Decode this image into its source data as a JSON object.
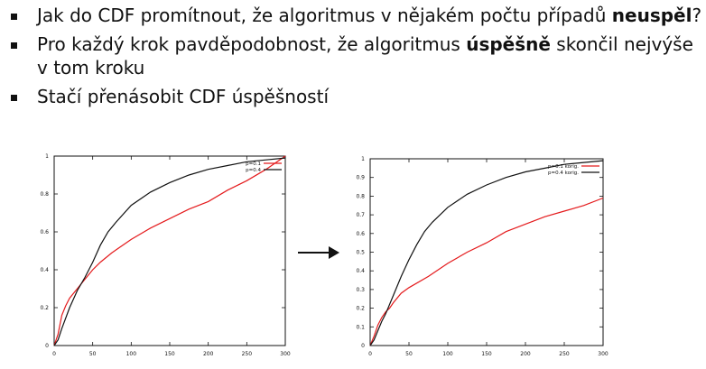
{
  "slide": {
    "bullets": [
      {
        "parts": [
          "Jak do CDF promítnout, že algoritmus v nějakém počtu případů ",
          "neuspěl",
          "?"
        ]
      },
      {
        "parts": [
          "Pro každý krok pavděpodobnost, že algoritmus ",
          "úspěšně",
          " skončil nejvýše v tom kroku"
        ]
      },
      {
        "parts": [
          "Stačí přenásobit CDF úspěšností"
        ]
      }
    ]
  },
  "chart_data": [
    {
      "type": "line",
      "xlim": [
        0,
        300
      ],
      "ylim": [
        0,
        1
      ],
      "x_ticks": [
        "0",
        "50",
        "100",
        "150",
        "200",
        "250",
        "300"
      ],
      "y_ticks": [
        "0",
        "0.2",
        "0.4",
        "0.6",
        "0.8",
        "1"
      ],
      "legend_position": "top-right",
      "series": [
        {
          "name": "p=0.1",
          "color": "#e41a1c",
          "points": [
            [
              0,
              0
            ],
            [
              5,
              0.06
            ],
            [
              10,
              0.16
            ],
            [
              15,
              0.21
            ],
            [
              20,
              0.25
            ],
            [
              30,
              0.3
            ],
            [
              40,
              0.35
            ],
            [
              50,
              0.4
            ],
            [
              60,
              0.44
            ],
            [
              75,
              0.49
            ],
            [
              100,
              0.56
            ],
            [
              125,
              0.62
            ],
            [
              150,
              0.67
            ],
            [
              175,
              0.72
            ],
            [
              200,
              0.76
            ],
            [
              225,
              0.82
            ],
            [
              250,
              0.87
            ],
            [
              275,
              0.93
            ],
            [
              300,
              1.0
            ]
          ]
        },
        {
          "name": "p=0.4",
          "color": "#111111",
          "points": [
            [
              0,
              0
            ],
            [
              5,
              0.03
            ],
            [
              10,
              0.09
            ],
            [
              20,
              0.2
            ],
            [
              30,
              0.29
            ],
            [
              40,
              0.36
            ],
            [
              50,
              0.44
            ],
            [
              60,
              0.53
            ],
            [
              70,
              0.6
            ],
            [
              80,
              0.65
            ],
            [
              100,
              0.74
            ],
            [
              125,
              0.81
            ],
            [
              150,
              0.86
            ],
            [
              175,
              0.9
            ],
            [
              200,
              0.93
            ],
            [
              225,
              0.95
            ],
            [
              250,
              0.97
            ],
            [
              275,
              0.98
            ],
            [
              300,
              0.99
            ]
          ]
        }
      ]
    },
    {
      "type": "line",
      "xlim": [
        0,
        300
      ],
      "ylim": [
        0,
        1
      ],
      "x_ticks": [
        "0",
        "50",
        "100",
        "150",
        "200",
        "250",
        "300"
      ],
      "y_ticks": [
        "0",
        "0.1",
        "0.2",
        "0.3",
        "0.4",
        "0.5",
        "0.6",
        "0.7",
        "0.8",
        "0.9",
        "1"
      ],
      "legend_position": "top-right",
      "series": [
        {
          "name": "p=0.1 korig.",
          "color": "#e41a1c",
          "points": [
            [
              0,
              0
            ],
            [
              5,
              0.05
            ],
            [
              10,
              0.11
            ],
            [
              15,
              0.15
            ],
            [
              20,
              0.18
            ],
            [
              25,
              0.2
            ],
            [
              30,
              0.23
            ],
            [
              40,
              0.28
            ],
            [
              50,
              0.31
            ],
            [
              75,
              0.37
            ],
            [
              100,
              0.44
            ],
            [
              125,
              0.5
            ],
            [
              150,
              0.55
            ],
            [
              175,
              0.61
            ],
            [
              200,
              0.65
            ],
            [
              225,
              0.69
            ],
            [
              250,
              0.72
            ],
            [
              275,
              0.75
            ],
            [
              300,
              0.79
            ]
          ]
        },
        {
          "name": "p=0.4 korig.",
          "color": "#111111",
          "points": [
            [
              0,
              0
            ],
            [
              5,
              0.03
            ],
            [
              10,
              0.08
            ],
            [
              15,
              0.13
            ],
            [
              20,
              0.17
            ],
            [
              30,
              0.27
            ],
            [
              40,
              0.37
            ],
            [
              50,
              0.46
            ],
            [
              60,
              0.54
            ],
            [
              70,
              0.61
            ],
            [
              80,
              0.66
            ],
            [
              100,
              0.74
            ],
            [
              125,
              0.81
            ],
            [
              150,
              0.86
            ],
            [
              175,
              0.9
            ],
            [
              200,
              0.93
            ],
            [
              225,
              0.95
            ],
            [
              250,
              0.97
            ],
            [
              275,
              0.98
            ],
            [
              300,
              0.99
            ]
          ]
        }
      ]
    }
  ]
}
